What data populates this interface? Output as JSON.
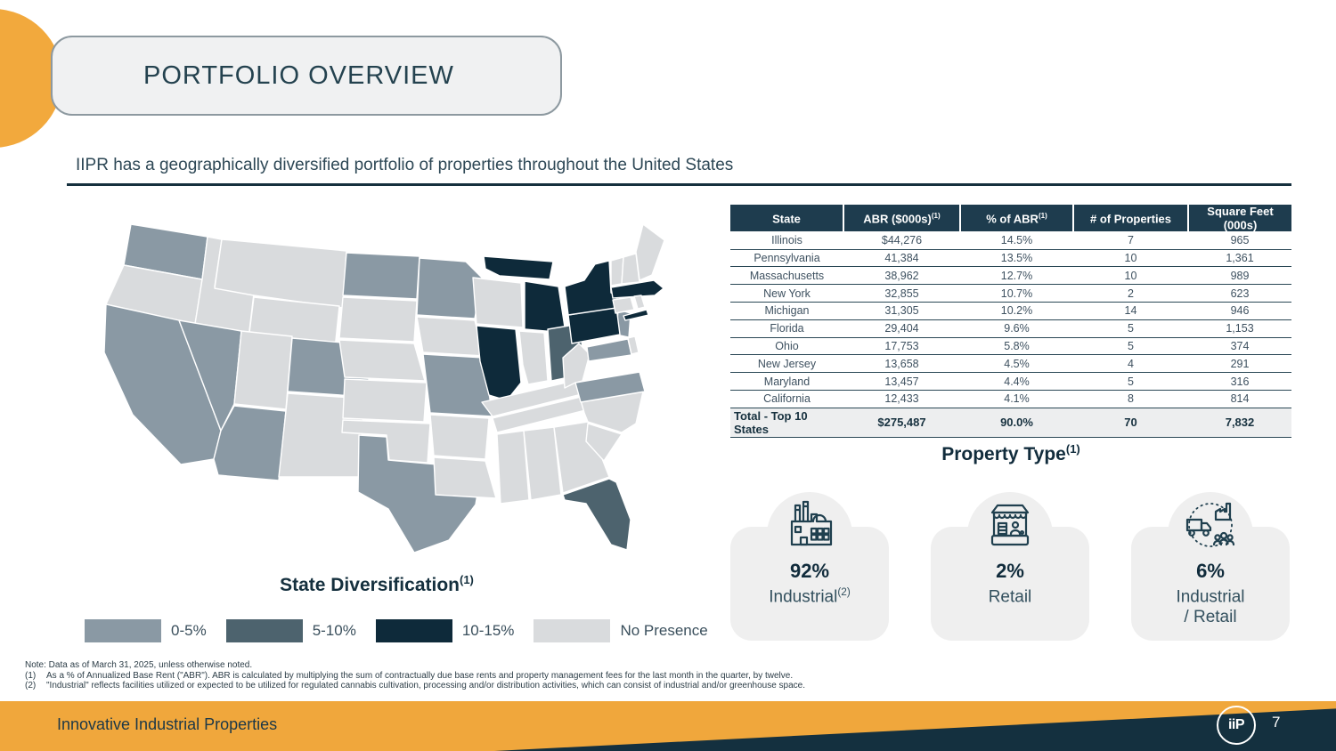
{
  "slide": {
    "title": "PORTFOLIO OVERVIEW",
    "subtitle": "IIPR has a geographically diversified portfolio of properties throughout the United States",
    "brand": "Innovative Industrial Properties",
    "logo_text": "iiP",
    "page_number": "7"
  },
  "colors": {
    "accent_orange": "#F2A93D",
    "dark_navy": "#14303F",
    "table_header_bg": "#1E3C4E",
    "card_bg": "#EFEFEF"
  },
  "map": {
    "caption": {
      "text": "State Diversification",
      "sup": "(1)"
    },
    "legend": [
      {
        "label": "0-5%",
        "color": "#8A99A4"
      },
      {
        "label": "5-10%",
        "color": "#4D636E"
      },
      {
        "label": "10-15%",
        "color": "#0E2A3A"
      },
      {
        "label": "No Presence",
        "color": "#D9DBDD"
      }
    ],
    "no_presence_color": "#D9DBDD",
    "state_categories": {
      "WA": "0-5%",
      "CA": "0-5%",
      "NV": "0-5%",
      "AZ": "0-5%",
      "CO": "0-5%",
      "ND": "0-5%",
      "MN": "0-5%",
      "MO": "0-5%",
      "TX": "0-5%",
      "NJ": "0-5%",
      "MD": "0-5%",
      "VA": "0-5%",
      "OH": "5-10%",
      "FL": "5-10%",
      "IL": "10-15%",
      "MI": "10-15%",
      "PA": "10-15%",
      "NY": "10-15%",
      "MA": "10-15%"
    }
  },
  "table": {
    "headers": [
      {
        "text": "State",
        "sup": ""
      },
      {
        "text": "ABR ($000s)",
        "sup": "(1)"
      },
      {
        "text": "% of ABR",
        "sup": "(1)"
      },
      {
        "text": "# of Properties",
        "sup": ""
      },
      {
        "text": "Square Feet (000s)",
        "sup": ""
      }
    ],
    "rows": [
      [
        "Illinois",
        "$44,276",
        "14.5%",
        "7",
        "965"
      ],
      [
        "Pennsylvania",
        "41,384",
        "13.5%",
        "10",
        "1,361"
      ],
      [
        "Massachusetts",
        "38,962",
        "12.7%",
        "10",
        "989"
      ],
      [
        "New York",
        "32,855",
        "10.7%",
        "2",
        "623"
      ],
      [
        "Michigan",
        "31,305",
        "10.2%",
        "14",
        "946"
      ],
      [
        "Florida",
        "29,404",
        "9.6%",
        "5",
        "1,153"
      ],
      [
        "Ohio",
        "17,753",
        "5.8%",
        "5",
        "374"
      ],
      [
        "New Jersey",
        "13,658",
        "4.5%",
        "4",
        "291"
      ],
      [
        "Maryland",
        "13,457",
        "4.4%",
        "5",
        "316"
      ],
      [
        "California",
        "12,433",
        "4.1%",
        "8",
        "814"
      ]
    ],
    "total": [
      "Total - Top 10 States",
      "$275,487",
      "90.0%",
      "70",
      "7,832"
    ]
  },
  "property_type": {
    "title": {
      "text": "Property Type",
      "sup": "(1)"
    },
    "cards": [
      {
        "icon": "factory-icon",
        "pct": "92%",
        "label": "Industrial",
        "label_sup": "(2)",
        "label2": ""
      },
      {
        "icon": "storefront-icon",
        "pct": "2%",
        "label": "Retail",
        "label_sup": "",
        "label2": ""
      },
      {
        "icon": "industrial-retail-icon",
        "pct": "6%",
        "label": "Industrial",
        "label_sup": "",
        "label2": "/ Retail"
      }
    ]
  },
  "footnotes": {
    "note": "Note: Data as of March 31, 2025, unless otherwise noted.",
    "items": [
      {
        "marker": "(1)",
        "text": "As a % of Annualized Base Rent (\"ABR\"). ABR is calculated by multiplying the sum of contractually due base rents and property management fees for the last month in the quarter, by twelve."
      },
      {
        "marker": "(2)",
        "text": "\"Industrial\" reflects facilities utilized or expected to be utilized for regulated cannabis cultivation, processing and/or distribution activities, which can consist of industrial and/or greenhouse space."
      }
    ]
  }
}
